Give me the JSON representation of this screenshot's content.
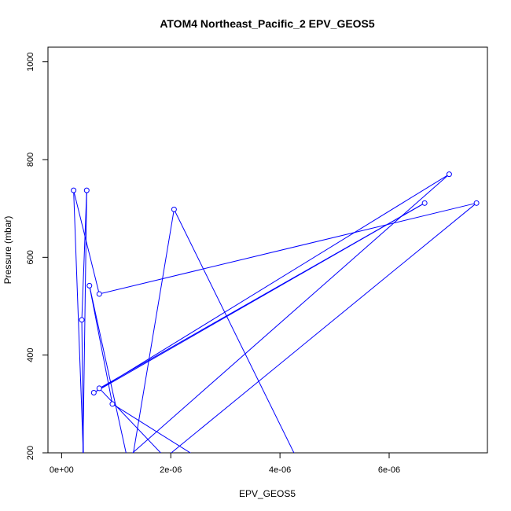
{
  "chart_data": {
    "type": "line",
    "title": "ATOM4 Northeast_Pacific_2 EPV_GEOS5",
    "xlabel": "EPV_GEOS5",
    "ylabel": "Pressure (mbar)",
    "xlim": [
      -2.5e-07,
      7.8e-06
    ],
    "ylim": [
      1030,
      200
    ],
    "y_reversed": true,
    "x_ticks": [
      0,
      2e-06,
      4e-06,
      6e-06
    ],
    "x_tick_labels": [
      "0e+00",
      "2e-06",
      "4e-06",
      "6e-06"
    ],
    "y_ticks": [
      200,
      400,
      600,
      800,
      1000
    ],
    "y_tick_labels": [
      "200",
      "400",
      "600",
      "800",
      "1000"
    ],
    "grid": false,
    "legend": "none",
    "marker": "open-circle",
    "series": [
      {
        "color": "#0000ff",
        "points": [
          {
            "x": 3.9e-07,
            "y": 190
          },
          {
            "x": 4.6e-07,
            "y": 737
          },
          {
            "x": 3.7e-07,
            "y": 472
          },
          {
            "x": 4e-07,
            "y": 190
          },
          {
            "x": 2.2e-07,
            "y": 737
          },
          {
            "x": 6.9e-07,
            "y": 525
          },
          {
            "x": 7.6e-06,
            "y": 711
          },
          {
            "x": 1.9e-06,
            "y": 190
          },
          {
            "x": 6.9e-07,
            "y": 332
          },
          {
            "x": 6.65e-06,
            "y": 711
          },
          {
            "x": 5.9e-07,
            "y": 323
          },
          {
            "x": 7.1e-06,
            "y": 770
          },
          {
            "x": 1.2e-06,
            "y": 190
          },
          {
            "x": 5.1e-07,
            "y": 542
          },
          {
            "x": 9.3e-07,
            "y": 300
          },
          {
            "x": 2.5e-06,
            "y": 190
          },
          {
            "x": 1.3e-06,
            "y": 190
          },
          {
            "x": 2.06e-06,
            "y": 698
          },
          {
            "x": 4.3e-06,
            "y": 190
          }
        ]
      }
    ]
  }
}
